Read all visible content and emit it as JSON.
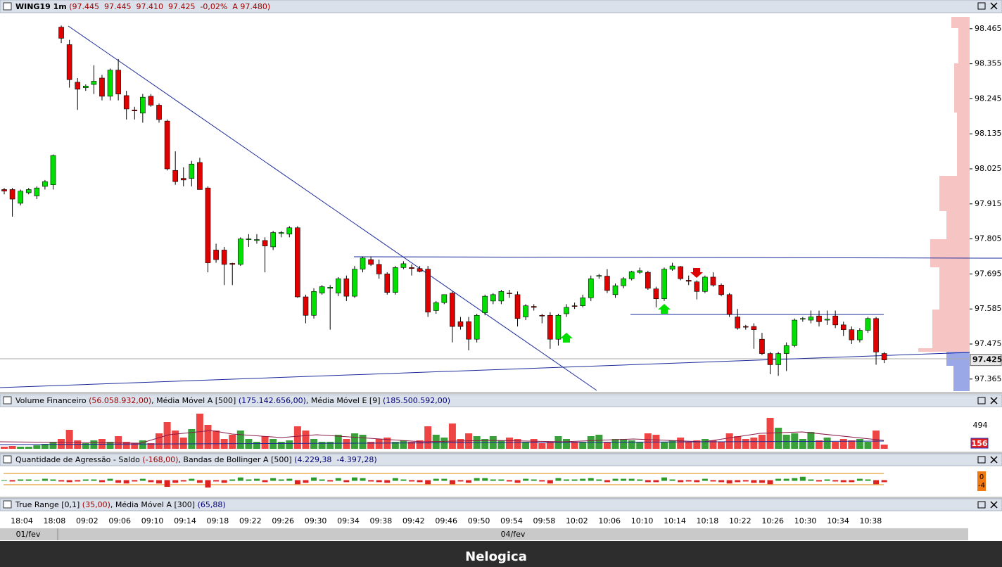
{
  "header": {
    "symbol": "WING19 1m",
    "quote": "(97.445  97.445  97.410  97.425  -0,02%  A 97.480)"
  },
  "chart_data": {
    "type": "candlestick",
    "up_color": "#00e000",
    "down_color": "#e00000",
    "ylim": [
      97.327,
      98.511
    ],
    "yticks": [
      98.465,
      98.355,
      98.245,
      98.135,
      98.025,
      97.915,
      97.805,
      97.695,
      97.585,
      97.475,
      97.365
    ],
    "last_price": 97.425,
    "ohlc": [
      [
        97.96,
        97.965,
        97.945,
        97.955
      ],
      [
        97.96,
        97.965,
        97.875,
        97.93
      ],
      [
        97.917,
        97.96,
        97.91,
        97.955
      ],
      [
        97.95,
        97.965,
        97.945,
        97.96
      ],
      [
        97.94,
        97.97,
        97.93,
        97.965
      ],
      [
        97.97,
        97.99,
        97.96,
        97.985
      ],
      [
        97.975,
        98.07,
        97.96,
        98.067
      ],
      [
        98.47,
        98.475,
        98.42,
        98.435
      ],
      [
        98.415,
        98.43,
        98.28,
        98.305
      ],
      [
        98.297,
        98.31,
        98.21,
        98.275
      ],
      [
        98.28,
        98.29,
        98.27,
        98.285
      ],
      [
        98.29,
        98.35,
        98.26,
        98.3
      ],
      [
        98.31,
        98.32,
        98.24,
        98.253
      ],
      [
        98.253,
        98.34,
        98.24,
        98.335
      ],
      [
        98.335,
        98.37,
        98.24,
        98.26
      ],
      [
        98.255,
        98.27,
        98.18,
        98.213
      ],
      [
        98.21,
        98.22,
        98.18,
        98.207
      ],
      [
        98.2,
        98.26,
        98.17,
        98.25
      ],
      [
        98.253,
        98.26,
        98.22,
        98.225
      ],
      [
        98.225,
        98.23,
        98.17,
        98.18
      ],
      [
        98.175,
        98.18,
        98.02,
        98.025
      ],
      [
        98.02,
        98.08,
        97.975,
        97.985
      ],
      [
        97.995,
        98.03,
        97.97,
        97.99
      ],
      [
        97.995,
        98.05,
        97.97,
        98.04
      ],
      [
        98.045,
        98.06,
        97.96,
        97.96
      ],
      [
        97.965,
        97.97,
        97.7,
        97.73
      ],
      [
        97.77,
        97.79,
        97.73,
        97.74
      ],
      [
        97.77,
        97.78,
        97.66,
        97.725
      ],
      [
        97.728,
        97.73,
        97.66,
        97.725
      ],
      [
        97.725,
        97.81,
        97.72,
        97.805
      ],
      [
        97.805,
        97.82,
        97.78,
        97.805
      ],
      [
        97.8,
        97.82,
        97.79,
        97.803
      ],
      [
        97.8,
        97.81,
        97.7,
        97.783
      ],
      [
        97.78,
        97.83,
        97.77,
        97.825
      ],
      [
        97.822,
        97.83,
        97.81,
        97.825
      ],
      [
        97.82,
        97.845,
        97.81,
        97.84
      ],
      [
        97.84,
        97.845,
        97.62,
        97.623
      ],
      [
        97.623,
        97.63,
        97.54,
        97.565
      ],
      [
        97.565,
        97.65,
        97.555,
        97.64
      ],
      [
        97.635,
        97.66,
        97.63,
        97.655
      ],
      [
        97.65,
        97.66,
        97.52,
        97.653
      ],
      [
        97.635,
        97.685,
        97.625,
        97.68
      ],
      [
        97.68,
        97.69,
        97.61,
        97.625
      ],
      [
        97.625,
        97.72,
        97.62,
        97.71
      ],
      [
        97.71,
        97.75,
        97.7,
        97.745
      ],
      [
        97.74,
        97.75,
        97.72,
        97.725
      ],
      [
        97.725,
        97.74,
        97.68,
        97.695
      ],
      [
        97.695,
        97.7,
        97.63,
        97.637
      ],
      [
        97.637,
        97.72,
        97.63,
        97.715
      ],
      [
        97.715,
        97.735,
        97.71,
        97.727
      ],
      [
        97.715,
        97.725,
        97.69,
        97.712
      ],
      [
        97.712,
        97.72,
        97.7,
        97.703
      ],
      [
        97.71,
        97.72,
        97.56,
        97.575
      ],
      [
        97.58,
        97.61,
        97.57,
        97.605
      ],
      [
        97.605,
        97.63,
        97.6,
        97.63
      ],
      [
        97.635,
        97.64,
        97.48,
        97.53
      ],
      [
        97.545,
        97.56,
        97.52,
        97.53
      ],
      [
        97.545,
        97.56,
        97.455,
        97.49
      ],
      [
        97.49,
        97.57,
        97.48,
        97.565
      ],
      [
        97.573,
        97.63,
        97.565,
        97.625
      ],
      [
        97.61,
        97.635,
        97.6,
        97.63
      ],
      [
        97.61,
        97.645,
        97.6,
        97.64
      ],
      [
        97.635,
        97.645,
        97.62,
        97.633
      ],
      [
        97.63,
        97.64,
        97.53,
        97.555
      ],
      [
        97.56,
        97.6,
        97.55,
        97.595
      ],
      [
        97.593,
        97.6,
        97.58,
        97.59
      ],
      [
        97.565,
        97.57,
        97.54,
        97.563
      ],
      [
        97.565,
        97.575,
        97.46,
        97.49
      ],
      [
        97.49,
        97.57,
        97.47,
        97.565
      ],
      [
        97.57,
        97.6,
        97.56,
        97.59
      ],
      [
        97.595,
        97.605,
        97.585,
        97.593
      ],
      [
        97.595,
        97.63,
        97.59,
        97.62
      ],
      [
        97.62,
        97.69,
        97.61,
        97.68
      ],
      [
        97.688,
        97.695,
        97.68,
        97.69
      ],
      [
        97.688,
        97.71,
        97.635,
        97.643
      ],
      [
        97.63,
        97.665,
        97.62,
        97.658
      ],
      [
        97.658,
        97.685,
        97.65,
        97.68
      ],
      [
        97.68,
        97.705,
        97.675,
        97.702
      ],
      [
        97.7,
        97.715,
        97.695,
        97.705
      ],
      [
        97.7,
        97.705,
        97.645,
        97.65
      ],
      [
        97.648,
        97.655,
        97.59,
        97.617
      ],
      [
        97.617,
        97.715,
        97.61,
        97.71
      ],
      [
        97.71,
        97.73,
        97.705,
        97.72
      ],
      [
        97.718,
        97.72,
        97.675,
        97.68
      ],
      [
        97.675,
        97.69,
        97.66,
        97.672
      ],
      [
        97.67,
        97.675,
        97.615,
        97.64
      ],
      [
        97.64,
        97.69,
        97.635,
        97.685
      ],
      [
        97.685,
        97.7,
        97.655,
        97.66
      ],
      [
        97.66,
        97.665,
        97.625,
        97.63
      ],
      [
        97.63,
        97.635,
        97.56,
        97.568
      ],
      [
        97.56,
        97.585,
        97.52,
        97.525
      ],
      [
        97.53,
        97.535,
        97.52,
        97.528
      ],
      [
        97.53,
        97.54,
        97.46,
        97.52
      ],
      [
        97.49,
        97.51,
        97.44,
        97.445
      ],
      [
        97.445,
        97.45,
        97.38,
        97.41
      ],
      [
        97.41,
        97.45,
        97.375,
        97.445
      ],
      [
        97.445,
        97.48,
        97.39,
        97.47
      ],
      [
        97.47,
        97.555,
        97.465,
        97.55
      ],
      [
        97.553,
        97.56,
        97.545,
        97.555
      ],
      [
        97.55,
        97.58,
        97.54,
        97.56
      ],
      [
        97.563,
        97.58,
        97.53,
        97.545
      ],
      [
        97.55,
        97.58,
        97.535,
        97.553
      ],
      [
        97.563,
        97.58,
        97.525,
        97.535
      ],
      [
        97.535,
        97.545,
        97.5,
        97.52
      ],
      [
        97.52,
        97.53,
        97.475,
        97.488
      ],
      [
        97.488,
        97.525,
        97.48,
        97.518
      ],
      [
        97.518,
        97.56,
        97.51,
        97.555
      ],
      [
        97.555,
        97.56,
        97.41,
        97.45
      ],
      [
        97.445,
        97.45,
        97.415,
        97.425
      ]
    ]
  },
  "volume_panel": {
    "title": "Volume Financeiro ",
    "value": "(56.058.932,00)",
    "ma_a": ", Média Móvel A [500] ",
    "ma_a_value": "(175.142.656,00)",
    "ma_e": ", Média Móvel E [9] ",
    "ma_e_value": "(185.500.592,00)",
    "scale_label": 494,
    "last_label": 156,
    "ylim": [
      0,
      55
    ],
    "values": [
      3,
      4,
      3,
      3,
      5,
      7,
      10,
      14,
      27,
      12,
      8,
      12,
      14,
      10,
      18,
      10,
      8,
      12,
      8,
      22,
      38,
      26,
      16,
      28,
      50,
      34,
      26,
      14,
      20,
      26,
      14,
      10,
      18,
      14,
      10,
      12,
      32,
      26,
      14,
      10,
      10,
      20,
      14,
      22,
      20,
      10,
      14,
      16,
      10,
      12,
      10,
      12,
      32,
      20,
      16,
      36,
      14,
      22,
      18,
      14,
      18,
      12,
      16,
      14,
      10,
      14,
      8,
      10,
      18,
      14,
      10,
      10,
      18,
      20,
      10,
      14,
      14,
      12,
      10,
      22,
      20,
      10,
      12,
      16,
      10,
      12,
      14,
      12,
      10,
      22,
      18,
      14,
      16,
      20,
      44,
      30,
      20,
      22,
      14,
      24,
      12,
      16,
      10,
      14,
      12,
      14,
      10,
      26,
      6
    ]
  },
  "aggression_panel": {
    "title": "Quantidade de Agressão - Saldo ",
    "value": "(-168,00)",
    "bb": ", Bandas de Bollinger A [500] ",
    "bb_value": "(4.229,38  -4.397,28)",
    "last_labels": [
      0,
      -4
    ],
    "ylim": [
      -21,
      21
    ],
    "values": [
      0,
      -1,
      1,
      1,
      0,
      2,
      1,
      -1,
      -2,
      -1,
      1,
      1,
      -2,
      2,
      -3,
      -4,
      -1,
      2,
      -2,
      -4,
      -9,
      -3,
      -1,
      2,
      -3,
      -10,
      -1,
      -3,
      1,
      4,
      1,
      2,
      -2,
      3,
      1,
      2,
      -5,
      -3,
      4,
      1,
      -1,
      3,
      -2,
      4,
      3,
      -1,
      -2,
      -3,
      3,
      1,
      -1,
      -2,
      -5,
      2,
      2,
      -5,
      -1,
      -3,
      3,
      3,
      1,
      1,
      -1,
      -3,
      2,
      1,
      -1,
      -4,
      3,
      1,
      1,
      2,
      3,
      1,
      -2,
      2,
      2,
      2,
      1,
      -2,
      -2,
      4,
      1,
      -2,
      -1,
      -2,
      2,
      -1,
      -2,
      -4,
      -2,
      -1,
      -3,
      -3,
      -5,
      2,
      2,
      3,
      5,
      1,
      -1,
      1,
      -1,
      -2,
      -2,
      2,
      1,
      -5,
      -2
    ]
  },
  "true_range_panel": {
    "title": "True Range [0,1] ",
    "value": "(35,00)",
    "ma": ", Média Móvel A [300] ",
    "ma_value": "(65,88)"
  },
  "time_labels": [
    "18:04",
    "18:08",
    "09:02",
    "09:06",
    "09:10",
    "09:14",
    "09:18",
    "09:22",
    "09:26",
    "09:30",
    "09:34",
    "09:38",
    "09:42",
    "09:46",
    "09:50",
    "09:54",
    "09:58",
    "10:02",
    "10:06",
    "10:10",
    "10:14",
    "10:18",
    "10:22",
    "10:26",
    "10:30",
    "10:34",
    "10:38"
  ],
  "dates": [
    "01/fev",
    "04/fev"
  ],
  "footer": {
    "brand": "Nelogica"
  }
}
